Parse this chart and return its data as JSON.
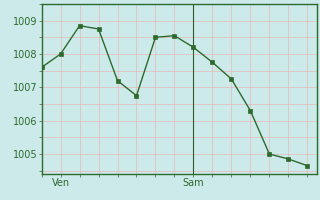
{
  "x_values": [
    0,
    1,
    2,
    3,
    4,
    5,
    6,
    7,
    8,
    9,
    10,
    11,
    12,
    13,
    14
  ],
  "y_values": [
    1007.6,
    1008.0,
    1008.85,
    1008.75,
    1007.2,
    1006.75,
    1008.5,
    1008.55,
    1008.2,
    1007.75,
    1007.25,
    1006.3,
    1005.0,
    1004.85,
    1004.65
  ],
  "xtick_positions": [
    1,
    8
  ],
  "xtick_labels": [
    "Ven",
    "Sam"
  ],
  "ytick_positions": [
    1005,
    1006,
    1007,
    1008,
    1009
  ],
  "ytick_labels": [
    "1005",
    "1006",
    "1007",
    "1008",
    "1009"
  ],
  "ylim": [
    1004.4,
    1009.5
  ],
  "xlim": [
    0,
    14.5
  ],
  "line_color": "#2d6a2d",
  "marker_color": "#2d6a2d",
  "bg_color": "#cdeaea",
  "grid_major_color": "#e8b8b8",
  "grid_minor_color": "#e8b8b8",
  "vline_x": 8,
  "vline_color": "#2d5a2d",
  "fig_w": 3.2,
  "fig_h": 2.0,
  "dpi": 100
}
